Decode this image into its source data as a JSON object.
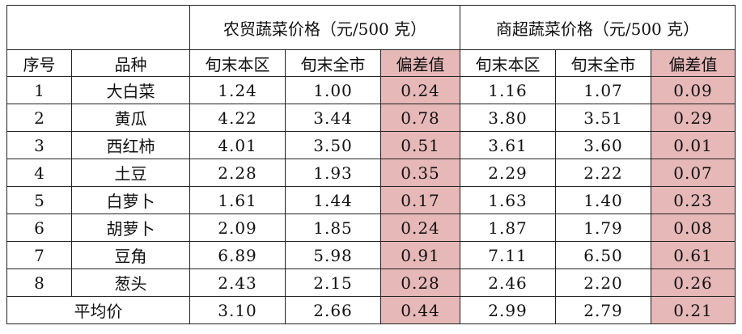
{
  "table": {
    "group_headers": {
      "farm_market": "农贸蔬菜价格（元/500 克）",
      "supermarket": "商超蔬菜价格（元/500 克）"
    },
    "sub_headers": {
      "index": "序号",
      "variety": "品种",
      "district_late": "旬末本区",
      "city_late": "旬末全市",
      "deviation": "偏差值"
    },
    "rows": [
      {
        "no": "1",
        "name": "大白菜",
        "farm": {
          "district": "1.24",
          "city": "1.00",
          "dev": "0.24"
        },
        "super": {
          "district": "1.16",
          "city": "1.07",
          "dev": "0.09"
        }
      },
      {
        "no": "2",
        "name": "黄瓜",
        "farm": {
          "district": "4.22",
          "city": "3.44",
          "dev": "0.78"
        },
        "super": {
          "district": "3.80",
          "city": "3.51",
          "dev": "0.29"
        }
      },
      {
        "no": "3",
        "name": "西红柿",
        "farm": {
          "district": "4.01",
          "city": "3.50",
          "dev": "0.51"
        },
        "super": {
          "district": "3.61",
          "city": "3.60",
          "dev": "0.01"
        }
      },
      {
        "no": "4",
        "name": "土豆",
        "farm": {
          "district": "2.28",
          "city": "1.93",
          "dev": "0.35"
        },
        "super": {
          "district": "2.29",
          "city": "2.22",
          "dev": "0.07"
        }
      },
      {
        "no": "5",
        "name": "白萝卜",
        "farm": {
          "district": "1.61",
          "city": "1.44",
          "dev": "0.17"
        },
        "super": {
          "district": "1.63",
          "city": "1.40",
          "dev": "0.23"
        }
      },
      {
        "no": "6",
        "name": "胡萝卜",
        "farm": {
          "district": "2.09",
          "city": "1.85",
          "dev": "0.24"
        },
        "super": {
          "district": "1.87",
          "city": "1.79",
          "dev": "0.08"
        }
      },
      {
        "no": "7",
        "name": "豆角",
        "farm": {
          "district": "6.89",
          "city": "5.98",
          "dev": "0.91"
        },
        "super": {
          "district": "7.11",
          "city": "6.50",
          "dev": "0.61"
        }
      },
      {
        "no": "8",
        "name": "葱头",
        "farm": {
          "district": "2.43",
          "city": "2.15",
          "dev": "0.28"
        },
        "super": {
          "district": "2.46",
          "city": "2.20",
          "dev": "0.26"
        }
      }
    ],
    "average": {
      "label": "平均价",
      "farm": {
        "district": "3.10",
        "city": "2.66",
        "dev": "0.44"
      },
      "super": {
        "district": "2.99",
        "city": "2.79",
        "dev": "0.21"
      }
    },
    "colors": {
      "deviation_highlight": "#e6b8b7",
      "border": "#222222"
    }
  }
}
